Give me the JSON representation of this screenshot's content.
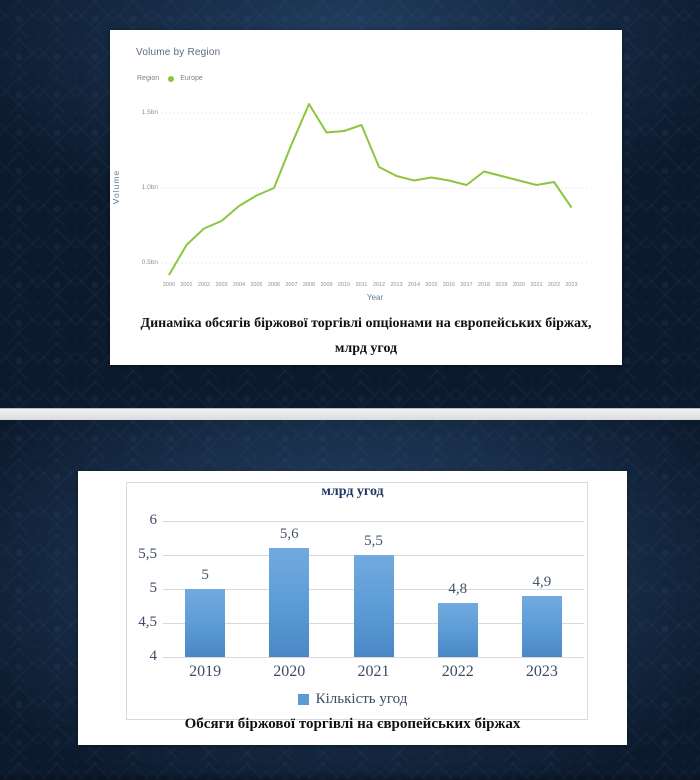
{
  "slide1": {
    "chart": {
      "title": "Volume by Region",
      "legend_title": "Region",
      "legend_item": "Europe",
      "y_axis_title": "Volume",
      "x_axis_title": "Year"
    },
    "caption_line1": "Динаміка обсягів біржової торгівлі опціонами на європейських біржах,",
    "caption_line2": "млрд угод"
  },
  "slide2": {
    "chart": {
      "title": "млрд угод",
      "legend_item": "Кількість угод"
    },
    "caption": "Обсяги біржової торгівлі на європейських біржах"
  },
  "colors": {
    "line_green": "#8cc63f",
    "bar_blue": "#5b9bd5",
    "grid_gray": "#d9d9d9",
    "tick_gray": "#8b9198",
    "dark_navy_bg": "#0c1a2d"
  },
  "chart_data": [
    {
      "type": "line",
      "title": "Volume by Region",
      "legend": [
        "Europe"
      ],
      "legend_position": "top-left",
      "xlabel": "Year",
      "ylabel": "Volume",
      "x": [
        2000,
        2001,
        2002,
        2003,
        2004,
        2005,
        2006,
        2007,
        2008,
        2009,
        2010,
        2011,
        2012,
        2013,
        2014,
        2015,
        2016,
        2017,
        2018,
        2019,
        2020,
        2021,
        2022,
        2023
      ],
      "series": [
        {
          "name": "Europe",
          "values": [
            0.42,
            0.62,
            0.73,
            0.78,
            0.88,
            0.95,
            1.0,
            1.29,
            1.56,
            1.37,
            1.38,
            1.42,
            1.14,
            1.08,
            1.05,
            1.07,
            1.05,
            1.02,
            1.11,
            1.08,
            1.05,
            1.02,
            1.04,
            0.87
          ]
        }
      ],
      "y_ticks": [
        {
          "value": 0.5,
          "label": "0.5bn"
        },
        {
          "value": 1.0,
          "label": "1.0bn"
        },
        {
          "value": 1.5,
          "label": "1.5bn"
        }
      ],
      "ylim": [
        0.35,
        1.62
      ],
      "grid": "horizontal-dotted",
      "line_color": "#8cc63f"
    },
    {
      "type": "bar",
      "title": "млрд угод",
      "categories": [
        "2019",
        "2020",
        "2021",
        "2022",
        "2023"
      ],
      "values": [
        5,
        5.6,
        5.5,
        4.8,
        4.9
      ],
      "data_labels": [
        "5",
        "5,6",
        "5,5",
        "4,8",
        "4,9"
      ],
      "y_ticks": [
        {
          "value": 6,
          "label": "6"
        },
        {
          "value": 5.5,
          "label": "5,5"
        },
        {
          "value": 5,
          "label": "5"
        },
        {
          "value": 4.5,
          "label": "4,5"
        },
        {
          "value": 4,
          "label": "4"
        }
      ],
      "ylim": [
        4,
        6
      ],
      "legend": [
        "Кількість угод"
      ],
      "legend_position": "bottom",
      "grid": "horizontal",
      "bar_color": "#5b9bd5"
    }
  ]
}
